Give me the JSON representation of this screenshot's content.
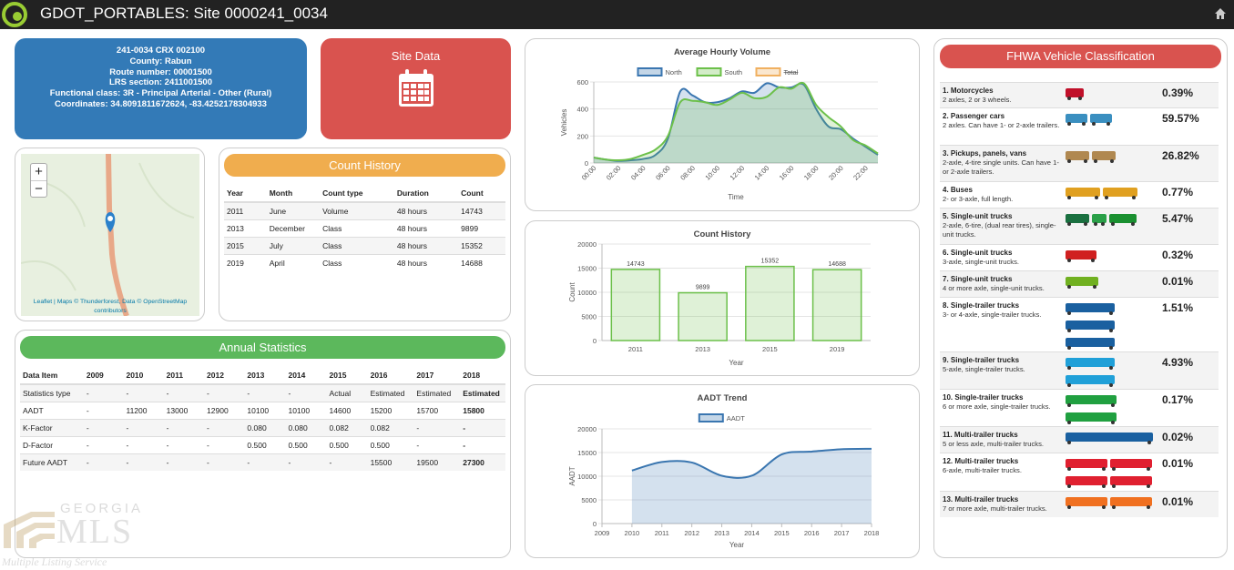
{
  "header": {
    "title": "GDOT_PORTABLES: Site 0000241_0034"
  },
  "site_info": {
    "lines": [
      "241-0034 CRX 002100",
      "County: Rabun",
      "Route number: 00001500",
      "LRS section: 2411001500",
      "Functional class: 3R - Principal Arterial - Other (Rural)",
      "Coordinates: 34.8091811672624, -83.4252178304933"
    ]
  },
  "site_data_button": "Site Data",
  "map": {
    "zoom_in": "+",
    "zoom_out": "−",
    "attribution": "Leaflet | Maps © Thunderforest, Data © OpenStreetMap contributors"
  },
  "count_history_table": {
    "title": "Count History",
    "columns": [
      "Year",
      "Month",
      "Count type",
      "Duration",
      "Count"
    ],
    "rows": [
      [
        "2011",
        "June",
        "Volume",
        "48 hours",
        "14743"
      ],
      [
        "2013",
        "December",
        "Class",
        "48 hours",
        "9899"
      ],
      [
        "2015",
        "July",
        "Class",
        "48 hours",
        "15352"
      ],
      [
        "2019",
        "April",
        "Class",
        "48 hours",
        "14688"
      ]
    ]
  },
  "annual_statistics": {
    "title": "Annual Statistics",
    "columns": [
      "Data Item",
      "2009",
      "2010",
      "2011",
      "2012",
      "2013",
      "2014",
      "2015",
      "2016",
      "2017",
      "2018"
    ],
    "rows": [
      [
        "Statistics type",
        "-",
        "-",
        "-",
        "-",
        "-",
        "-",
        "Actual",
        "Estimated",
        "Estimated",
        "Estimated"
      ],
      [
        "AADT",
        "-",
        "11200",
        "13000",
        "12900",
        "10100",
        "10100",
        "14600",
        "15200",
        "15700",
        "15800"
      ],
      [
        "K-Factor",
        "-",
        "-",
        "-",
        "-",
        "0.080",
        "0.080",
        "0.082",
        "0.082",
        "-",
        "-"
      ],
      [
        "D-Factor",
        "-",
        "-",
        "-",
        "-",
        "0.500",
        "0.500",
        "0.500",
        "0.500",
        "-",
        "-"
      ],
      [
        "Future AADT",
        "-",
        "-",
        "-",
        "-",
        "-",
        "-",
        "-",
        "15500",
        "19500",
        "27300"
      ]
    ]
  },
  "fhwa": {
    "title": "FHWA Vehicle Classification",
    "rows": [
      {
        "name": "1. Motorcycles",
        "description": "2 axles, 2 or 3 wheels.",
        "percent": "0.39%"
      },
      {
        "name": "2. Passenger cars",
        "description": "2 axles. Can have 1- or 2-axle trailers.",
        "percent": "59.57%"
      },
      {
        "name": "3. Pickups, panels, vans",
        "description": "2-axle, 4-tire single units. Can have 1- or 2-axle trailers.",
        "percent": "26.82%"
      },
      {
        "name": "4. Buses",
        "description": "2- or 3-axle, full length.",
        "percent": "0.77%"
      },
      {
        "name": "5. Single-unit trucks",
        "description": "2-axle, 6-tire, (dual rear tires), single-unit trucks.",
        "percent": "5.47%"
      },
      {
        "name": "6. Single-unit trucks",
        "description": "3-axle, single-unit trucks.",
        "percent": "0.32%"
      },
      {
        "name": "7. Single-unit trucks",
        "description": "4 or more axle, single-unit trucks.",
        "percent": "0.01%"
      },
      {
        "name": "8. Single-trailer trucks",
        "description": "3- or 4-axle, single-trailer trucks.",
        "percent": "1.51%"
      },
      {
        "name": "9. Single-trailer trucks",
        "description": "5-axle, single-trailer trucks.",
        "percent": "4.93%"
      },
      {
        "name": "10. Single-trailer trucks",
        "description": "6 or more axle, single-trailer trucks.",
        "percent": "0.17%"
      },
      {
        "name": "11. Multi-trailer trucks",
        "description": "5 or less axle, multi-trailer trucks.",
        "percent": "0.02%"
      },
      {
        "name": "12. Multi-trailer trucks",
        "description": "6-axle, multi-trailer trucks.",
        "percent": "0.01%"
      },
      {
        "name": "13. Multi-trailer trucks",
        "description": "7 or more axle, multi-trailer trucks.",
        "percent": "0.01%"
      }
    ]
  },
  "watermark": {
    "brand": "GEORGIA",
    "logo_text": "MLS",
    "tagline": "Multiple Listing Service"
  },
  "chart_data": [
    {
      "type": "line",
      "title": "Average Hourly Volume",
      "x_label": "Time",
      "y_label": "Vehicles",
      "categories": [
        "00:00",
        null,
        "02:00",
        null,
        "04:00",
        null,
        "06:00",
        null,
        "08:00",
        null,
        "10:00",
        null,
        "12:00",
        null,
        "14:00",
        null,
        "16:00",
        null,
        "18:00",
        null,
        "20:00",
        null,
        "22:00",
        null
      ],
      "series": [
        {
          "name": "North",
          "color": "#3a76b0",
          "values": [
            40,
            25,
            15,
            20,
            30,
            60,
            180,
            530,
            500,
            450,
            450,
            480,
            530,
            520,
            590,
            560,
            560,
            580,
            400,
            270,
            250,
            180,
            120,
            60
          ]
        },
        {
          "name": "South",
          "color": "#6cc04a",
          "values": [
            40,
            25,
            20,
            30,
            60,
            100,
            200,
            450,
            460,
            450,
            430,
            470,
            520,
            480,
            490,
            560,
            550,
            590,
            430,
            340,
            270,
            170,
            130,
            70
          ]
        },
        {
          "name": "Total",
          "color": "#f0b060",
          "hidden": true,
          "values": [
            null,
            null,
            null,
            null,
            null,
            null,
            null,
            null,
            null,
            null,
            null,
            null,
            null,
            null,
            null,
            null,
            null,
            null,
            null,
            null,
            null,
            null,
            null,
            null
          ]
        }
      ],
      "ylim": [
        0,
        600
      ],
      "yticks": [
        0,
        200,
        400,
        600
      ],
      "legend": "top",
      "fill": true
    },
    {
      "type": "bar",
      "title": "Count History",
      "x_label": "Year",
      "y_label": "Count",
      "categories": [
        "2011",
        "2013",
        "2015",
        "2019"
      ],
      "values": [
        14743,
        9899,
        15352,
        14688
      ],
      "color": "#6cc04a",
      "ylim": [
        0,
        20000
      ],
      "yticks": [
        0,
        5000,
        10000,
        15000,
        20000
      ]
    },
    {
      "type": "line",
      "title": "AADT Trend",
      "x_label": "Year",
      "y_label": "AADT",
      "x": [
        2010,
        2011,
        2012,
        2013,
        2014,
        2015,
        2016,
        2017,
        2018
      ],
      "series": [
        {
          "name": "AADT",
          "color": "#3a76b0",
          "values": [
            11200,
            13000,
            12900,
            10100,
            10100,
            14600,
            15200,
            15700,
            15800
          ]
        }
      ],
      "xlim": [
        2009,
        2018
      ],
      "xticks": [
        2009,
        2010,
        2011,
        2012,
        2013,
        2014,
        2015,
        2016,
        2017,
        2018
      ],
      "ylim": [
        0,
        20000
      ],
      "yticks": [
        0,
        5000,
        10000,
        15000,
        20000
      ],
      "legend": "top",
      "fill": true
    }
  ]
}
